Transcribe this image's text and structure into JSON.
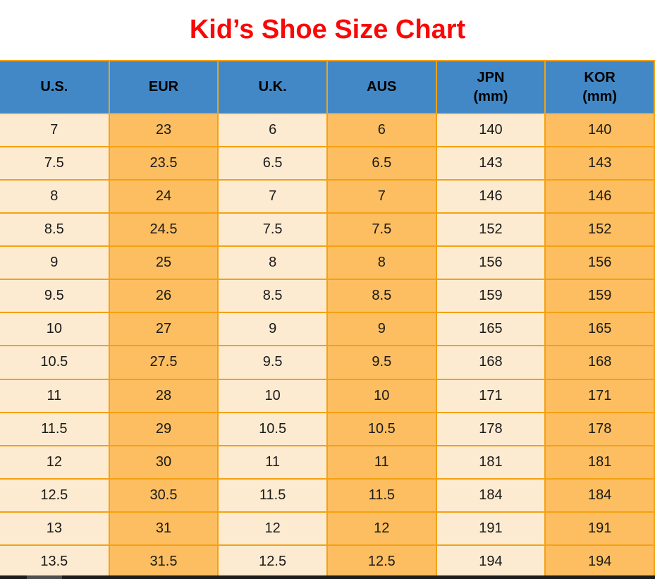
{
  "page": {
    "title": "Kid’s Shoe Size Chart"
  },
  "colors": {
    "title_red": "#FA0707",
    "header_blue": "#4288C6",
    "column_cream": "#FDEBD1",
    "column_orange": "#FCBE61",
    "border_orange": "#F5A110",
    "cell_text": "#1A1A1A"
  },
  "chart_data": {
    "type": "table",
    "title": "Kid’s Shoe Size Chart",
    "columns": [
      "U.S.",
      "EUR",
      "U.K.",
      "AUS",
      "JPN (mm)",
      "KOR (mm)"
    ],
    "header_display": [
      "U.S.",
      "EUR",
      "U.K.",
      "AUS",
      "JPN\n(mm)",
      "KOR\n(mm)"
    ],
    "rows": [
      [
        "7",
        "23",
        "6",
        "6",
        "140",
        "140"
      ],
      [
        "7.5",
        "23.5",
        "6.5",
        "6.5",
        "143",
        "143"
      ],
      [
        "8",
        "24",
        "7",
        "7",
        "146",
        "146"
      ],
      [
        "8.5",
        "24.5",
        "7.5",
        "7.5",
        "152",
        "152"
      ],
      [
        "9",
        "25",
        "8",
        "8",
        "156",
        "156"
      ],
      [
        "9.5",
        "26",
        "8.5",
        "8.5",
        "159",
        "159"
      ],
      [
        "10",
        "27",
        "9",
        "9",
        "165",
        "165"
      ],
      [
        "10.5",
        "27.5",
        "9.5",
        "9.5",
        "168",
        "168"
      ],
      [
        "11",
        "28",
        "10",
        "10",
        "171",
        "171"
      ],
      [
        "11.5",
        "29",
        "10.5",
        "10.5",
        "178",
        "178"
      ],
      [
        "12",
        "30",
        "11",
        "11",
        "181",
        "181"
      ],
      [
        "12.5",
        "30.5",
        "11.5",
        "11.5",
        "184",
        "184"
      ],
      [
        "13",
        "31",
        "12",
        "12",
        "191",
        "191"
      ],
      [
        "13.5",
        "31.5",
        "12.5",
        "12.5",
        "194",
        "194"
      ]
    ]
  }
}
